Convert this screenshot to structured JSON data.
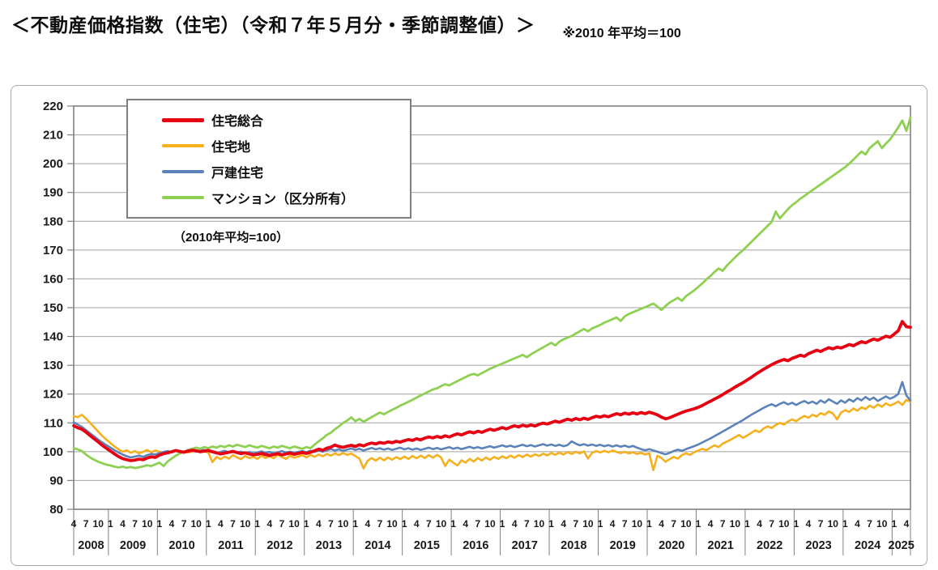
{
  "header": {
    "title": "＜不動産価格指数（住宅）（令和７年５月分・季節調整値）＞",
    "note": "※2010 年平均＝100"
  },
  "chart_data": {
    "type": "line",
    "title": "不動産価格指数（住宅）",
    "note_inside": "（2010年平均=100）",
    "ylim": [
      80,
      220
    ],
    "y_step": 10,
    "grid": "horizontal",
    "legend_position": "top-left",
    "x_start": {
      "year": 2008,
      "month": 4
    },
    "x_end": {
      "year": 2025,
      "month": 5
    },
    "month_tick_labels": [
      1,
      4,
      7,
      10
    ],
    "x_year_labels": [
      "2008",
      "2009",
      "2010",
      "2011",
      "2012",
      "2013",
      "2014",
      "2015",
      "2016",
      "2017",
      "2018",
      "2019",
      "2020",
      "2021",
      "2022",
      "2023",
      "2024",
      "2025"
    ],
    "colors": {
      "grid": "#a3a3a3",
      "axis": "#808080",
      "text": "#1a1a1a"
    },
    "series": [
      {
        "name": "住宅総合",
        "color": "#e60012",
        "width": 3.8,
        "values": [
          109.0,
          108.3,
          107.8,
          106.8,
          105.6,
          104.5,
          103.4,
          102.2,
          101.2,
          100.2,
          99.2,
          98.3,
          97.6,
          97.2,
          96.9,
          97.1,
          97.4,
          97.2,
          97.8,
          98.2,
          98.0,
          98.8,
          99.3,
          99.6,
          100.0,
          100.4,
          100.1,
          99.8,
          100.2,
          100.5,
          100.3,
          100.0,
          100.2,
          100.4,
          100.0,
          99.6,
          99.2,
          99.5,
          99.8,
          100.1,
          99.7,
          99.3,
          99.6,
          99.2,
          98.9,
          99.1,
          99.4,
          99.0,
          98.7,
          99.0,
          99.3,
          98.9,
          99.2,
          99.5,
          99.1,
          99.4,
          99.7,
          99.4,
          99.8,
          100.3,
          100.9,
          100.5,
          101.2,
          101.6,
          102.3,
          101.8,
          101.5,
          101.9,
          102.2,
          101.8,
          102.4,
          102.0,
          102.6,
          103.0,
          102.7,
          103.2,
          102.9,
          103.4,
          103.1,
          103.6,
          103.3,
          103.8,
          104.2,
          103.9,
          104.5,
          104.1,
          104.7,
          105.1,
          104.8,
          105.3,
          104.9,
          105.5,
          105.1,
          105.7,
          106.2,
          105.8,
          106.4,
          106.9,
          106.5,
          107.1,
          106.7,
          107.3,
          107.8,
          107.4,
          107.9,
          108.4,
          107.9,
          108.5,
          109.0,
          108.6,
          109.2,
          108.8,
          109.3,
          108.9,
          109.5,
          109.9,
          109.6,
          110.1,
          110.6,
          110.2,
          110.8,
          111.3,
          110.9,
          111.5,
          111.1,
          111.6,
          111.2,
          111.8,
          112.3,
          112.0,
          112.5,
          112.1,
          112.7,
          113.2,
          112.8,
          113.4,
          113.0,
          113.5,
          113.1,
          113.6,
          113.2,
          113.7,
          113.3,
          112.8,
          112.0,
          111.4,
          111.8,
          112.4,
          113.0,
          113.6,
          114.1,
          114.5,
          114.9,
          115.4,
          116.0,
          116.8,
          117.5,
          118.3,
          119.0,
          119.8,
          120.7,
          121.5,
          122.4,
          123.2,
          124.0,
          124.9,
          125.8,
          126.8,
          127.7,
          128.6,
          129.4,
          130.2,
          130.9,
          131.5,
          132.0,
          131.6,
          132.4,
          132.9,
          133.5,
          133.1,
          134.0,
          134.6,
          135.2,
          134.8,
          135.5,
          136.1,
          135.7,
          136.3,
          136.0,
          136.6,
          137.2,
          136.8,
          137.5,
          138.2,
          137.8,
          138.5,
          139.1,
          138.7,
          139.4,
          140.1,
          139.7,
          140.8,
          142.0,
          145.2,
          143.4,
          143.2
        ]
      },
      {
        "name": "住宅地",
        "color": "#f5b01e",
        "width": 2.6,
        "values": [
          112.3,
          112.0,
          112.8,
          111.5,
          110.0,
          108.5,
          107.0,
          105.5,
          104.2,
          103.0,
          101.8,
          100.8,
          100.0,
          100.5,
          99.6,
          100.2,
          99.4,
          100.0,
          100.6,
          99.8,
          100.4,
          100.0,
          99.5,
          100.2,
          99.8,
          100.3,
          99.9,
          100.1,
          99.7,
          100.0,
          100.4,
          99.8,
          100.1,
          99.6,
          96.4,
          98.2,
          97.4,
          98.3,
          97.6,
          98.8,
          98.0,
          97.4,
          98.5,
          97.8,
          98.2,
          97.5,
          98.6,
          97.8,
          98.4,
          97.7,
          98.9,
          98.1,
          97.5,
          98.6,
          97.9,
          98.3,
          98.8,
          98.0,
          98.9,
          98.2,
          99.0,
          98.4,
          99.2,
          98.6,
          99.4,
          98.8,
          99.5,
          98.9,
          99.3,
          98.5,
          97.6,
          94.2,
          96.8,
          97.8,
          96.9,
          97.9,
          97.0,
          98.0,
          97.2,
          98.1,
          97.4,
          98.3,
          97.5,
          98.5,
          97.7,
          98.6,
          97.8,
          98.8,
          97.9,
          98.9,
          98.0,
          95.0,
          97.2,
          96.2,
          95.2,
          97.0,
          96.2,
          97.5,
          96.6,
          97.8,
          96.9,
          98.0,
          97.2,
          98.2,
          97.5,
          98.4,
          97.7,
          98.6,
          97.9,
          98.8,
          98.1,
          99.0,
          98.3,
          99.1,
          98.5,
          99.3,
          98.7,
          99.5,
          98.9,
          99.7,
          99.0,
          99.9,
          99.2,
          100.0,
          99.4,
          100.1,
          97.6,
          99.6,
          100.2,
          99.7,
          100.3,
          99.8,
          100.4,
          99.9,
          99.5,
          100.0,
          99.4,
          99.8,
          99.2,
          99.6,
          99.0,
          99.4,
          93.6,
          98.6,
          97.8,
          96.5,
          97.4,
          98.2,
          97.6,
          98.8,
          99.4,
          98.9,
          99.8,
          100.4,
          101.0,
          100.5,
          101.4,
          102.2,
          101.6,
          102.8,
          103.5,
          104.2,
          105.0,
          105.8,
          104.8,
          105.6,
          106.5,
          107.4,
          106.8,
          108.0,
          108.8,
          108.2,
          109.3,
          110.0,
          109.4,
          110.5,
          111.2,
          110.6,
          111.6,
          112.4,
          111.8,
          112.8,
          112.2,
          113.4,
          112.8,
          114.0,
          113.2,
          111.2,
          113.6,
          114.4,
          113.8,
          115.0,
          114.2,
          115.4,
          114.8,
          116.0,
          115.2,
          116.4,
          115.6,
          116.8,
          116.0,
          116.6,
          117.4,
          116.2,
          118.0,
          117.4
        ]
      },
      {
        "name": "戸建住宅",
        "color": "#5b83ba",
        "width": 2.6,
        "values": [
          110.2,
          109.4,
          108.6,
          107.5,
          106.4,
          105.3,
          104.2,
          103.2,
          102.3,
          101.4,
          100.5,
          99.7,
          99.0,
          98.4,
          98.0,
          98.3,
          98.6,
          98.2,
          98.8,
          99.2,
          99.0,
          99.5,
          99.9,
          100.2,
          99.8,
          100.3,
          100.0,
          99.7,
          100.1,
          100.4,
          100.0,
          100.3,
          100.6,
          100.2,
          99.8,
          99.4,
          99.9,
          100.3,
          99.8,
          100.2,
          99.7,
          100.0,
          99.5,
          99.9,
          99.4,
          99.7,
          100.1,
          99.6,
          99.9,
          99.4,
          99.8,
          100.2,
          99.7,
          100.0,
          99.6,
          99.9,
          100.2,
          99.8,
          100.3,
          99.9,
          100.4,
          100.0,
          100.5,
          100.9,
          100.4,
          100.8,
          100.3,
          100.7,
          101.1,
          100.6,
          101.0,
          100.4,
          100.9,
          101.3,
          100.8,
          101.2,
          100.7,
          101.1,
          100.6,
          101.0,
          101.4,
          100.8,
          101.2,
          100.7,
          101.1,
          100.6,
          101.0,
          101.4,
          100.9,
          101.3,
          100.8,
          101.2,
          101.6,
          101.0,
          101.4,
          100.9,
          101.3,
          101.7,
          101.2,
          101.6,
          101.1,
          101.5,
          101.9,
          101.4,
          101.8,
          102.2,
          101.7,
          102.1,
          101.6,
          102.0,
          102.4,
          101.9,
          102.3,
          101.8,
          102.2,
          102.6,
          102.1,
          102.5,
          102.0,
          102.4,
          101.9,
          102.3,
          103.6,
          102.8,
          102.2,
          102.6,
          102.1,
          102.5,
          102.0,
          102.4,
          101.9,
          102.3,
          101.8,
          102.2,
          101.7,
          102.1,
          101.6,
          102.0,
          101.4,
          100.9,
          100.5,
          100.9,
          100.4,
          100.0,
          99.5,
          99.1,
          99.6,
          100.2,
          100.7,
          100.3,
          100.9,
          101.4,
          101.9,
          102.5,
          103.2,
          103.9,
          104.6,
          105.4,
          106.2,
          107.0,
          107.8,
          108.6,
          109.4,
          110.2,
          111.0,
          111.9,
          112.8,
          113.6,
          114.4,
          115.2,
          115.9,
          116.5,
          115.8,
          116.6,
          117.2,
          116.4,
          117.0,
          116.2,
          117.0,
          117.6,
          116.8,
          117.4,
          116.6,
          117.8,
          117.0,
          118.2,
          117.4,
          116.6,
          117.8,
          117.0,
          118.2,
          117.4,
          118.6,
          117.8,
          119.0,
          118.0,
          118.8,
          117.6,
          118.4,
          119.2,
          118.4,
          119.0,
          120.0,
          124.2,
          119.5,
          117.8
        ]
      },
      {
        "name": "マンション（区分所有）",
        "color": "#8ed051",
        "width": 2.8,
        "values": [
          101.2,
          100.8,
          100.2,
          99.0,
          98.0,
          97.2,
          96.5,
          96.0,
          95.5,
          95.2,
          94.8,
          94.5,
          94.8,
          94.4,
          94.7,
          94.3,
          94.6,
          94.9,
          95.3,
          95.0,
          95.6,
          96.2,
          95.0,
          96.6,
          97.6,
          98.6,
          99.4,
          100.0,
          100.6,
          101.0,
          101.4,
          101.0,
          101.6,
          101.2,
          101.8,
          101.4,
          102.0,
          101.6,
          102.2,
          101.8,
          102.4,
          102.0,
          101.6,
          102.2,
          101.8,
          101.4,
          102.0,
          101.6,
          101.2,
          101.8,
          101.4,
          102.0,
          101.6,
          101.2,
          101.8,
          101.4,
          101.0,
          101.6,
          101.2,
          102.4,
          103.6,
          104.6,
          105.8,
          106.6,
          107.8,
          108.8,
          110.0,
          110.8,
          111.9,
          110.6,
          111.4,
          110.4,
          111.2,
          112.0,
          112.8,
          113.6,
          113.0,
          113.8,
          114.5,
          115.2,
          116.0,
          116.6,
          117.3,
          118.0,
          118.8,
          119.5,
          120.2,
          120.9,
          121.6,
          122.0,
          122.8,
          123.4,
          123.0,
          123.8,
          124.5,
          125.2,
          125.9,
          126.6,
          127.0,
          126.5,
          127.3,
          128.0,
          128.8,
          129.4,
          130.0,
          130.6,
          131.2,
          131.8,
          132.4,
          133.0,
          133.6,
          132.8,
          133.8,
          134.6,
          135.4,
          136.2,
          137.0,
          137.8,
          136.9,
          138.2,
          139.0,
          139.6,
          140.2,
          141.0,
          141.8,
          142.6,
          141.8,
          142.8,
          143.4,
          144.0,
          144.8,
          145.4,
          146.0,
          146.6,
          145.4,
          147.0,
          147.8,
          148.4,
          149.0,
          149.6,
          150.2,
          150.8,
          151.4,
          150.4,
          149.2,
          150.6,
          151.8,
          152.6,
          153.4,
          152.4,
          154.0,
          155.0,
          156.0,
          157.2,
          158.4,
          159.8,
          161.0,
          162.4,
          163.6,
          162.8,
          164.6,
          166.0,
          167.4,
          168.8,
          170.0,
          171.4,
          172.8,
          174.2,
          175.6,
          177.0,
          178.4,
          179.8,
          183.4,
          181.0,
          182.6,
          184.2,
          185.6,
          186.6,
          187.8,
          188.8,
          189.8,
          190.8,
          191.8,
          192.8,
          193.8,
          194.8,
          195.8,
          196.8,
          197.8,
          198.8,
          200.0,
          201.4,
          202.8,
          204.2,
          203.2,
          205.4,
          206.6,
          207.8,
          205.4,
          207.0,
          208.4,
          210.4,
          212.6,
          215.0,
          211.4,
          216.0
        ]
      }
    ]
  }
}
